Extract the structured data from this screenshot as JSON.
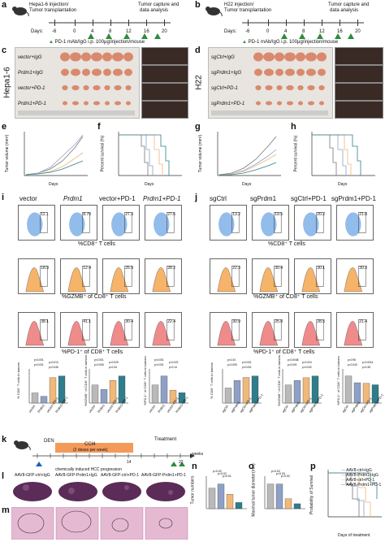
{
  "panels": {
    "a": {
      "letter": "a",
      "injection": [
        "Hepa1-6 injection/",
        "Tumor transplantation"
      ],
      "capture": [
        "Tumor capture and",
        "data analysis"
      ],
      "days_label": "Days:",
      "days": [
        "-6",
        "0",
        "4",
        "8",
        "12",
        "16",
        "20"
      ],
      "treatment": "PD-1 mAb/IgG i.p. 100μg/injection/mouse"
    },
    "b": {
      "letter": "b",
      "injection": [
        "H22 injection/",
        "Tumor transplantation"
      ],
      "capture": [
        "Tumor capture and",
        "data analysis"
      ],
      "days_label": "Days:",
      "days": [
        "-6",
        "0",
        "4",
        "8",
        "12",
        "16",
        "20"
      ],
      "treatment": "PD-1 mAb/IgG i.p. 100μg/injection/mouse"
    },
    "c": {
      "letter": "c",
      "side": "Hepa1-6",
      "rows": [
        "vector+IgG",
        "Prdm1+IgG",
        "vector+PD-1",
        "Prdm1+PD-1"
      ]
    },
    "d": {
      "letter": "d",
      "side": "H22",
      "rows": [
        "sgCtrl+IgG",
        "sgPrdm1+IgG",
        "sgCtrl+PD-1",
        "sgPrdm1+PD-1"
      ]
    },
    "e": {
      "letter": "e",
      "ylabel": "Tumor volume (mm³)",
      "xlabel": "Days"
    },
    "f": {
      "letter": "f",
      "ylabel": "Percent survival (%)",
      "xlabel": "Days"
    },
    "g": {
      "letter": "g",
      "ylabel": "Tumor volume (mm³)",
      "xlabel": "Days"
    },
    "h": {
      "letter": "h",
      "ylabel": "Percent survival (%)",
      "xlabel": "Days"
    },
    "i": {
      "letter": "i",
      "cols": [
        "vector",
        "Prdm1",
        "vector+PD-1",
        "Prdm1+PD-1"
      ],
      "row1_vals": [
        "11.1",
        "8.70",
        "27.3",
        "27.6"
      ],
      "row2_vals": [
        "18.9",
        "12.4",
        "25.9",
        "28.2"
      ],
      "row3_vals": [
        "38.1",
        "41.1",
        "30.4",
        "22.4"
      ],
      "row1_title": "%CD8⁺ T cells",
      "row2_title": "%GZMB⁺ of CD8⁺ T cells",
      "row3_title": "%PD-1⁺ of CD8⁺ T cells"
    },
    "j": {
      "letter": "j",
      "cols": [
        "sgCtrl",
        "sgPrdm1",
        "sgCtrl+PD-1",
        "sgPrdm1+PD-1"
      ],
      "row1_vals": [
        "13.2",
        "19.5",
        "20.2",
        "21.8"
      ],
      "row2_vals": [
        "22.3",
        "30.4",
        "30.1",
        "30.3"
      ],
      "row3_vals": [
        "30.9",
        "25.8",
        "28.5",
        "21.4"
      ],
      "row1_title": "%CD8⁺ T cells",
      "row2_title": "%GZMB⁺ of CD8⁺ T cells",
      "row3_title": "%PD-1⁺ of CD8⁺ T cells"
    },
    "k": {
      "letter": "k",
      "den": "DEN",
      "ccl4": "CCl4",
      "doses": "(2 doses per week)",
      "treatment": "Treatment",
      "weeks_ticks": [
        "0",
        "2",
        "4",
        "6",
        "8",
        "10",
        "12",
        "14",
        "16",
        "18",
        "20",
        "22"
      ],
      "weeks_label": "weeks",
      "progression": "chemically induced HCC progression"
    },
    "l": {
      "letter": "l",
      "cols": [
        "AAV8-GFP-ctrl+IgG",
        "AAV8-GFP-Prdm1+IgG",
        "AAV8-GFP-ctrl+PD-1",
        "AAV8-GFP-Prdm1+PD-1"
      ]
    },
    "m": {
      "letter": "m"
    },
    "n": {
      "letter": "n",
      "ylabel": "Tumor numbers",
      "p": [
        "p=0.02",
        "p=0.02",
        "p=0.01"
      ]
    },
    "o": {
      "letter": "o",
      "ylabel": "Maximal tumor diameter(mm)",
      "p": [
        "p=0.02",
        "p=0.03",
        "p=0.02"
      ]
    },
    "p": {
      "letter": "p",
      "ylabel": "Probability of Survival",
      "xlabel": "Days of treatment",
      "legend": [
        "AAV8-ctrl+IgG",
        "AAV8-Prdm1+IgG",
        "AAV8-ctrl+PD-1",
        "AAV8-Prdm1+PD-1"
      ],
      "xticks": [
        "0",
        "10",
        "20",
        "30",
        "40",
        "50",
        "60",
        "70"
      ]
    }
  },
  "bar_groups": {
    "left": {
      "xcats": [
        "vector",
        "Prdm1",
        "vector+PD-1",
        "Prdm1+PD-1"
      ],
      "charts": [
        {
          "ylabel": "% CD8⁺ T cells in tumors",
          "p": [
            "p<0.001",
            "p=0.013",
            "p<0.001",
            "p=0.046"
          ],
          "values": [
            6,
            4,
            15,
            16
          ]
        },
        {
          "ylabel": "%GZMB⁺ of CD8⁺ T cells in tumors",
          "p": [
            "p<0.001",
            "p=0.029",
            "p=0.006",
            "p=0.34"
          ],
          "values": [
            20,
            15,
            25,
            30
          ]
        },
        {
          "ylabel": "%PD-1⁺ of CD8⁺ T cells in tumors",
          "p": [
            "p<0.001",
            "p=0.021",
            "p<0.001",
            "p=0.14"
          ],
          "values": [
            28,
            42,
            20,
            16
          ]
        }
      ]
    },
    "right": {
      "xcats": [
        "sgCtrl",
        "sgPrdm1",
        "sgCtrl+PD-1",
        "sgPrdm1+PD-1"
      ],
      "charts": [
        {
          "ylabel": "% CD8⁺ T cells in tumors",
          "p": [
            "p=0.34",
            "p<0.001",
            "p=0.009",
            "p<0.001"
          ],
          "values": [
            10,
            15,
            17,
            18
          ]
        },
        {
          "ylabel": "%GZMB⁺ of CD8⁺ T cells in tumors",
          "p": [
            "p=0.0048",
            "p=0.024",
            "p<0.001",
            "p=0.032"
          ],
          "values": [
            20,
            25,
            28,
            30
          ]
        },
        {
          "ylabel": "%PD-1⁺ of CD8⁺ T cells in tumors",
          "p": [
            "p=0.96",
            "p=0.0014",
            "p=0.043",
            "p=0.35"
          ],
          "values": [
            40,
            30,
            29,
            27
          ]
        }
      ]
    }
  },
  "colors": {
    "bar1": "#b9b9b9",
    "bar2": "#8fa0c7",
    "bar3": "#f0b879",
    "bar4": "#2f7d8c",
    "flowblue": "#7fb0e6",
    "floworange": "#f5b46a",
    "flowpink": "#f08b8b",
    "timeline": "#2e8b3a",
    "orange": "#f39a5a",
    "tumor": "#d98a6e"
  }
}
